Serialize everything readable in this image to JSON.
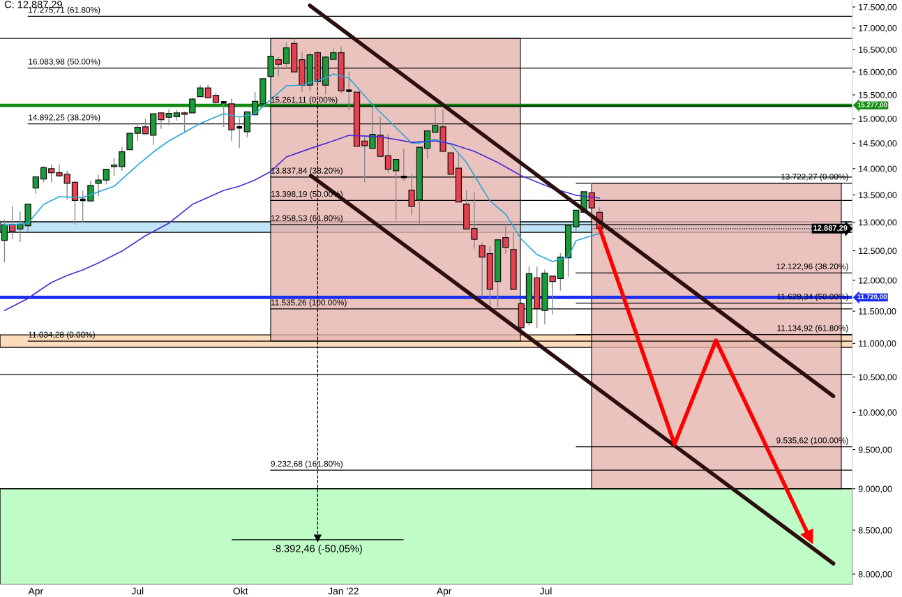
{
  "chart_data": {
    "type": "candlestick",
    "x": [
      "2021-03-04",
      "2021-03-11",
      "2021-03-18",
      "2021-03-25",
      "2021-04-01",
      "2021-04-08",
      "2021-04-15",
      "2021-04-22",
      "2021-04-29",
      "2021-05-06",
      "2021-05-13",
      "2021-05-20",
      "2021-05-27",
      "2021-06-03",
      "2021-06-10",
      "2021-06-17",
      "2021-06-24",
      "2021-07-01",
      "2021-07-08",
      "2021-07-15",
      "2021-07-22",
      "2021-07-29",
      "2021-08-05",
      "2021-08-12",
      "2021-08-19",
      "2021-08-26",
      "2021-09-02",
      "2021-09-09",
      "2021-09-16",
      "2021-09-23",
      "2021-09-30",
      "2021-10-07",
      "2021-10-14",
      "2021-10-21",
      "2021-10-28",
      "2021-11-04",
      "2021-11-11",
      "2021-11-18",
      "2021-11-25",
      "2021-12-02",
      "2021-12-09",
      "2021-12-16",
      "2021-12-23",
      "2021-12-30",
      "2022-01-06",
      "2022-01-13",
      "2022-01-20",
      "2022-01-27",
      "2022-02-03",
      "2022-02-10",
      "2022-02-17",
      "2022-02-24",
      "2022-03-03",
      "2022-03-10",
      "2022-03-17",
      "2022-03-24",
      "2022-03-31",
      "2022-04-07",
      "2022-04-14",
      "2022-04-21",
      "2022-04-28",
      "2022-05-05",
      "2022-05-12",
      "2022-05-19",
      "2022-05-26",
      "2022-06-02",
      "2022-06-09",
      "2022-06-16",
      "2022-06-23",
      "2022-06-30",
      "2022-07-07",
      "2022-07-14",
      "2022-07-21",
      "2022-07-28",
      "2022-08-04",
      "2022-08-11",
      "2022-08-18"
    ],
    "ohlc": [
      [
        12680,
        13050,
        12300,
        12955
      ],
      [
        12960,
        13300,
        12700,
        12840
      ],
      [
        12880,
        13200,
        12650,
        12960
      ],
      [
        12940,
        13340,
        12830,
        13330
      ],
      [
        13630,
        13840,
        13520,
        13840
      ],
      [
        13800,
        14050,
        13740,
        14020
      ],
      [
        14000,
        14080,
        13740,
        13920
      ],
      [
        13920,
        14080,
        13840,
        13860
      ],
      [
        13890,
        13960,
        13410,
        13720
      ],
      [
        13740,
        13770,
        12960,
        13400
      ],
      [
        13410,
        13580,
        13000,
        13410
      ],
      [
        13390,
        13770,
        13390,
        13680
      ],
      [
        13720,
        13880,
        13480,
        13780
      ],
      [
        13780,
        13990,
        13700,
        13990
      ],
      [
        14040,
        14210,
        13860,
        14070
      ],
      [
        14040,
        14420,
        13960,
        14330
      ],
      [
        14370,
        14700,
        14370,
        14700
      ],
      [
        14700,
        14880,
        14550,
        14820
      ],
      [
        14830,
        15000,
        14690,
        14690
      ],
      [
        14660,
        15100,
        14470,
        15100
      ],
      [
        15120,
        15120,
        14790,
        14980
      ],
      [
        15030,
        15190,
        14860,
        15110
      ],
      [
        15040,
        15180,
        14960,
        15120
      ],
      [
        15120,
        15150,
        14720,
        15090
      ],
      [
        15120,
        15440,
        15120,
        15410
      ],
      [
        15460,
        15710,
        15460,
        15650
      ],
      [
        15650,
        15720,
        15440,
        15440
      ],
      [
        15490,
        15550,
        15295,
        15340
      ],
      [
        15340,
        15340,
        14830,
        15340
      ],
      [
        15310,
        15420,
        14550,
        14770
      ],
      [
        14820,
        15000,
        14400,
        14820
      ],
      [
        14730,
        15140,
        14620,
        15140
      ],
      [
        15080,
        15560,
        15080,
        15360
      ],
      [
        15310,
        15850,
        15310,
        15850
      ],
      [
        15900,
        16350,
        15900,
        16350
      ],
      [
        16270,
        16330,
        15900,
        16170
      ],
      [
        16190,
        16660,
        16080,
        16540
      ],
      [
        16640,
        16750,
        16000,
        16000
      ],
      [
        16270,
        16440,
        15560,
        15710
      ],
      [
        15710,
        16420,
        15575,
        16380
      ],
      [
        16430,
        16470,
        15790,
        15790
      ],
      [
        15710,
        16360,
        15510,
        16330
      ],
      [
        16280,
        16540,
        16280,
        16430
      ],
      [
        16430,
        16560,
        15530,
        15590
      ],
      [
        15590,
        16010,
        15180,
        15590
      ],
      [
        15560,
        15560,
        14440,
        14440
      ],
      [
        14540,
        14660,
        13740,
        14450
      ],
      [
        14400,
        15250,
        14400,
        14680
      ],
      [
        14660,
        15030,
        14220,
        14240
      ],
      [
        14250,
        14680,
        13920,
        13990
      ],
      [
        13960,
        14180,
        13040,
        14180
      ],
      [
        13840,
        14390,
        13760,
        13840
      ],
      [
        13590,
        13890,
        13130,
        13290
      ],
      [
        13410,
        14420,
        12970,
        14420
      ],
      [
        14400,
        14750,
        14190,
        14750
      ],
      [
        14720,
        15250,
        14720,
        14860
      ],
      [
        14830,
        15190,
        14330,
        14340
      ],
      [
        14310,
        14310,
        13890,
        13890
      ],
      [
        14010,
        14300,
        13370,
        13370
      ],
      [
        13330,
        13590,
        12880,
        12880
      ],
      [
        12890,
        13560,
        12530,
        12700
      ],
      [
        12590,
        12640,
        11740,
        12390
      ],
      [
        12450,
        12580,
        11560,
        11850
      ],
      [
        11980,
        12690,
        11560,
        12690
      ],
      [
        12730,
        12930,
        12450,
        12560
      ],
      [
        12520,
        12830,
        11850,
        11850
      ],
      [
        11620,
        11640,
        11180,
        11240
      ],
      [
        11320,
        12240,
        11270,
        12110
      ],
      [
        12040,
        12230,
        11240,
        11540
      ],
      [
        11510,
        12180,
        11290,
        12120
      ],
      [
        12070,
        12070,
        11450,
        11980
      ],
      [
        12030,
        12460,
        11830,
        12390
      ],
      [
        12380,
        12960,
        12060,
        12950
      ],
      [
        12920,
        13220,
        12820,
        13220
      ],
      [
        13180,
        13560,
        13180,
        13560
      ],
      [
        13540,
        13722.27,
        13260,
        13260
      ],
      [
        13180,
        13270,
        12887.29,
        12887.29
      ]
    ],
    "colors": [
      "#1a9c38",
      "#e8404f",
      "#1a9c38",
      "#1a9c38",
      "#1a9c38",
      "#1a9c38",
      "#e8404f",
      "#e8404f",
      "#e8404f",
      "#e8404f",
      "#000000",
      "#1a9c38",
      "#1a9c38",
      "#1a9c38",
      "#1a9c38",
      "#1a9c38",
      "#1a9c38",
      "#1a9c38",
      "#e8404f",
      "#1a9c38",
      "#e8404f",
      "#1a9c38",
      "#1a9c38",
      "#e8404f",
      "#1a9c38",
      "#1a9c38",
      "#e8404f",
      "#e8404f",
      "#000000",
      "#e8404f",
      "#000000",
      "#1a9c38",
      "#1a9c38",
      "#1a9c38",
      "#1a9c38",
      "#e8404f",
      "#1a9c38",
      "#e8404f",
      "#e8404f",
      "#1a9c38",
      "#e8404f",
      "#1a9c38",
      "#1a9c38",
      "#e8404f",
      "#000000",
      "#e8404f",
      "#e8404f",
      "#1a9c38",
      "#e8404f",
      "#e8404f",
      "#1a9c38",
      "#000000",
      "#e8404f",
      "#1a9c38",
      "#1a9c38",
      "#1a9c38",
      "#e8404f",
      "#e8404f",
      "#e8404f",
      "#e8404f",
      "#e8404f",
      "#e8404f",
      "#e8404f",
      "#1a9c38",
      "#e8404f",
      "#e8404f",
      "#e8404f",
      "#1a9c38",
      "#e8404f",
      "#1a9c38",
      "#e8404f",
      "#1a9c38",
      "#1a9c38",
      "#1a9c38",
      "#1a9c38",
      "#e8404f",
      "#e8404f"
    ],
    "series": [
      {
        "type": "line",
        "color": "#2aa7d8",
        "x": [
          "2021-03-04",
          "2021-03-25",
          "2021-04-08",
          "2021-04-22",
          "2021-05-13",
          "2021-06-10",
          "2021-07-01",
          "2021-07-15",
          "2021-07-29",
          "2021-08-26",
          "2021-09-16",
          "2021-09-30",
          "2021-10-14",
          "2021-10-28",
          "2021-11-11",
          "2021-11-25",
          "2021-12-16",
          "2021-12-23",
          "2022-01-06",
          "2022-01-27",
          "2022-02-10",
          "2022-03-03",
          "2022-03-10",
          "2022-03-24",
          "2022-04-07",
          "2022-04-21",
          "2022-05-12",
          "2022-05-26",
          "2022-06-09",
          "2022-06-23",
          "2022-07-07",
          "2022-07-21",
          "2022-07-28",
          "2022-08-11",
          "2022-08-18"
        ],
        "values": [
          12946,
          12982,
          13326,
          13468,
          13454,
          13664,
          14065,
          14324,
          14546,
          14901,
          15103,
          15030,
          15103,
          15397,
          15696,
          15711,
          15864,
          15955,
          15864,
          15293,
          14973,
          14504,
          14504,
          14576,
          14476,
          14119,
          13389,
          13148,
          12700,
          12434,
          12315,
          12397,
          12676,
          12761,
          12800
        ]
      },
      {
        "type": "line",
        "color": "#4b2bd6",
        "x": [
          "2021-03-04",
          "2021-03-25",
          "2021-04-01",
          "2021-04-15",
          "2021-04-29",
          "2021-05-13",
          "2021-05-27",
          "2021-06-17",
          "2021-07-08",
          "2021-07-29",
          "2021-08-19",
          "2021-09-16",
          "2021-09-30",
          "2021-10-14",
          "2021-10-28",
          "2021-11-11",
          "2021-12-02",
          "2021-12-23",
          "2022-01-06",
          "2022-02-03",
          "2022-03-03",
          "2022-03-24",
          "2022-04-07",
          "2022-04-28",
          "2022-05-19",
          "2022-06-09",
          "2022-07-07",
          "2022-07-28",
          "2022-08-18"
        ],
        "values": [
          11511,
          11702,
          11793,
          11965,
          12080,
          12173,
          12291,
          12493,
          12761,
          12985,
          13326,
          13585,
          13664,
          13783,
          13944,
          14228,
          14392,
          14546,
          14658,
          14630,
          14518,
          14546,
          14490,
          14338,
          14119,
          13864,
          13624,
          13494,
          13442
        ]
      },
      {
        "type": "line",
        "color": "#2b0f0f",
        "x": [
          "2021-12-02",
          "2023-03-15"
        ],
        "values": [
          17534,
          10227
        ]
      },
      {
        "type": "line",
        "color": "#2b0f0f",
        "x": [
          "2021-12-03",
          "2023-03-15"
        ],
        "values": [
          13864,
          8117
        ]
      },
      {
        "type": "line",
        "color": "#000000",
        "line_style": "dashed",
        "x": [
          "2021-12-09",
          "2021-12-09"
        ],
        "values": [
          16380,
          8419
        ]
      },
      {
        "type": "line",
        "color": "#ff0000",
        "x": [
          "2022-08-18",
          "2022-10-24",
          "2022-11-30",
          "2023-02-21"
        ],
        "values": [
          12900,
          9569,
          11045,
          8435
        ]
      }
    ],
    "log": "y",
    "ylim": [
      7886,
      17669
    ],
    "yticks": [
      {
        "value": 8000,
        "label": "8.000,00"
      },
      {
        "value": 8500,
        "label": "8.500,00"
      },
      {
        "value": 9000,
        "label": "9.000,00"
      },
      {
        "value": 9500,
        "label": "9.500,00"
      },
      {
        "value": 10000,
        "label": "10.000,00"
      },
      {
        "value": 10500,
        "label": "10.500,00"
      },
      {
        "value": 11000,
        "label": "11.000,00"
      },
      {
        "value": 11500,
        "label": "11.500,00"
      },
      {
        "value": 12000,
        "label": "12.000,00"
      },
      {
        "value": 12500,
        "label": "12.500,00"
      },
      {
        "value": 13000,
        "label": "13.000,00"
      },
      {
        "value": 13500,
        "label": "13.500,00"
      },
      {
        "value": 14000,
        "label": "14.000,00"
      },
      {
        "value": 14500,
        "label": "14.500,00"
      },
      {
        "value": 15000,
        "label": "15.000,00"
      },
      {
        "value": 15500,
        "label": "15.500,00"
      },
      {
        "value": 16000,
        "label": "16.000,00"
      },
      {
        "value": 16500,
        "label": "16.500,00"
      },
      {
        "value": 17000,
        "label": "17.000,00"
      },
      {
        "value": 17500,
        "label": "17.500,00"
      }
    ],
    "xlim": [
      "2021-02-28",
      "2023-04-01"
    ],
    "xticks": [
      {
        "value": "2021-04-01",
        "label": "Apr"
      },
      {
        "value": "2021-07-01",
        "label": "Jul"
      },
      {
        "value": "2021-10-01",
        "label": "Okt"
      },
      {
        "value": "2022-01-01",
        "label": "Jan '22"
      },
      {
        "value": "2022-04-01",
        "label": "Apr"
      },
      {
        "value": "2022-07-01",
        "label": "Jul"
      }
    ],
    "bands": [
      {
        "axis": "y",
        "from": 12822,
        "to": 13009,
        "color": "#bfe3f7"
      },
      {
        "axis": "y",
        "from": 10939,
        "to": 11130,
        "color": "#fddcbb"
      },
      {
        "axis": "y",
        "from": 7886,
        "to": 9000,
        "color": "#bffcc6"
      }
    ],
    "ref_lines": [
      {
        "axis": "y",
        "value": 16757,
        "color": "#000000"
      },
      {
        "axis": "y",
        "value": 10537,
        "color": "#000000"
      },
      {
        "axis": "y",
        "value": 15277,
        "label": "15.277,00",
        "color": "#138a13"
      },
      {
        "axis": "y",
        "value": 11720,
        "label": "11.720,00",
        "color": "#1a2ff0"
      },
      {
        "axis": "y",
        "value": 12887.29,
        "label": "12.887,29",
        "color": "#000000",
        "line_style": "dotted"
      },
      {
        "axis": "y",
        "value": 17275.71,
        "label": "17.275,71 (61.80%)",
        "color": "#000000"
      },
      {
        "axis": "y",
        "value": 16083.98,
        "label": "16.083,98 (50.00%)",
        "color": "#000000"
      },
      {
        "axis": "y",
        "value": 14892.25,
        "label": "14.892,25 (38.20%)",
        "color": "#000000"
      },
      {
        "axis": "y",
        "value": 11034.28,
        "label": "11.034,28 (0.00%)",
        "color": "#000000"
      },
      {
        "axis": "y",
        "value": 15261.11,
        "label": "15.261,11 (0.00%)",
        "color": "#000000"
      },
      {
        "axis": "y",
        "value": 13837.84,
        "label": "13.837,84 (38.20%)",
        "color": "#000000"
      },
      {
        "axis": "y",
        "value": 13398.19,
        "label": "13.398,19 (50.00%)",
        "color": "#000000"
      },
      {
        "axis": "y",
        "value": 12958.53,
        "label": "12.958,53 (61.80%)",
        "color": "#000000"
      },
      {
        "axis": "y",
        "value": 11535.26,
        "label": "11.535,26 (100.00%)",
        "color": "#000000"
      },
      {
        "axis": "y",
        "value": 9232.68,
        "label": "9.232,68 (161.80%)",
        "color": "#000000"
      },
      {
        "axis": "y",
        "value": 13722.27,
        "label": "13.722,27 (0.00%)",
        "color": "#000000"
      },
      {
        "axis": "y",
        "value": 12122.96,
        "label": "12.122,96 (38.20%)",
        "color": "#000000"
      },
      {
        "axis": "y",
        "value": 11628.34,
        "label": "11.628,34 (50.00%)",
        "color": "#000000"
      },
      {
        "axis": "y",
        "value": 11134.92,
        "label": "11.134,92 (61.80%)",
        "color": "#000000"
      },
      {
        "axis": "y",
        "value": 9535.62,
        "label": "9.535,62 (100.00%)",
        "color": "#000000"
      }
    ],
    "annotations": [
      "C: 12.887,29",
      "-8.392,46 (-50,05%)"
    ]
  }
}
